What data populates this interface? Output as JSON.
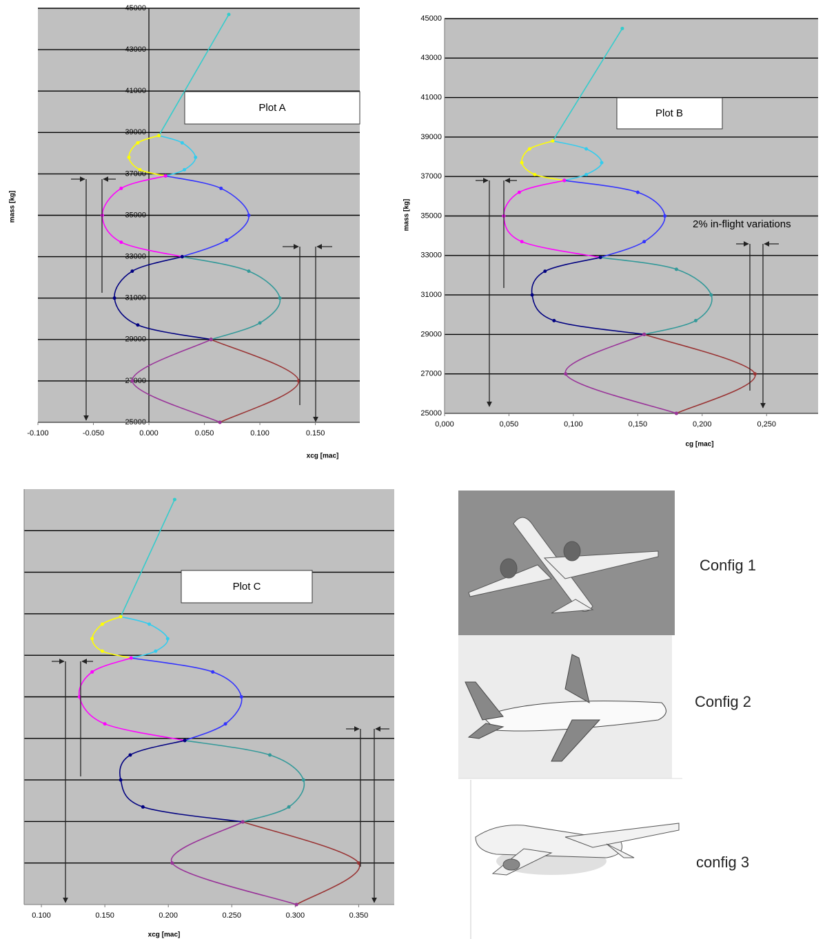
{
  "chart_data": [
    {
      "type": "line",
      "title": "Plot A",
      "x_label": "xcg [mac]",
      "y_label": "mass [kg]",
      "xlim": [
        -0.1,
        0.19
      ],
      "ylim": [
        25000,
        45000
      ],
      "xticks": [
        {
          "value": -0.1,
          "label": "-0.100"
        },
        {
          "value": -0.05,
          "label": "-0.050"
        },
        {
          "value": 0,
          "label": "0.000"
        },
        {
          "value": 0.05,
          "label": "0.050"
        },
        {
          "value": 0.1,
          "label": "0.100"
        },
        {
          "value": 0.15,
          "label": "0.150"
        }
      ],
      "yticks": [
        25000,
        27000,
        29000,
        31000,
        33000,
        35000,
        37000,
        39000,
        41000,
        43000,
        45000
      ],
      "grid": true,
      "zero_line": true,
      "show_ytick_labels": true,
      "series": [
        {
          "color": "#33cccc",
          "x": [
            0.009,
            0.072
          ],
          "y": [
            38850,
            44700
          ]
        },
        {
          "color": "#33ccee",
          "x": [
            0.009,
            0.03,
            0.042,
            0.032,
            0.015
          ],
          "y": [
            38850,
            38500,
            37800,
            37200,
            36900
          ]
        },
        {
          "color": "#ffff00",
          "x": [
            0.009,
            -0.01,
            -0.018,
            -0.008,
            0.015
          ],
          "y": [
            38850,
            38500,
            37800,
            37200,
            36900
          ]
        },
        {
          "color": "#3333ff",
          "x": [
            0.015,
            0.065,
            0.09,
            0.07,
            0.03
          ],
          "y": [
            36900,
            36300,
            35000,
            33800,
            33000
          ]
        },
        {
          "color": "#ff00ff",
          "x": [
            0.015,
            -0.025,
            -0.042,
            -0.025,
            0.03
          ],
          "y": [
            36900,
            36300,
            35000,
            33700,
            33000
          ]
        },
        {
          "color": "#339999",
          "x": [
            0.03,
            0.09,
            0.118,
            0.1,
            0.056
          ],
          "y": [
            33000,
            32300,
            31000,
            29800,
            29000
          ]
        },
        {
          "color": "#000080",
          "x": [
            0.03,
            -0.015,
            -0.031,
            -0.01,
            0.056
          ],
          "y": [
            33000,
            32300,
            31000,
            29700,
            29000
          ]
        },
        {
          "color": "#993333",
          "x": [
            0.056,
            0.135,
            0.064
          ],
          "y": [
            29000,
            27000,
            25000
          ]
        },
        {
          "color": "#993399",
          "x": [
            0.056,
            -0.015,
            0.064
          ],
          "y": [
            29000,
            27000,
            25000
          ]
        }
      ]
    },
    {
      "type": "line",
      "title": "Plot B",
      "x_label": "cg [mac]",
      "y_label": "mass [kg]",
      "annotation": "2% in-flight variations",
      "xlim": [
        0,
        0.29
      ],
      "ylim": [
        25000,
        45000
      ],
      "xticks": [
        {
          "value": 0,
          "label": "0,000"
        },
        {
          "value": 0.05,
          "label": "0,050"
        },
        {
          "value": 0.1,
          "label": "0,100"
        },
        {
          "value": 0.15,
          "label": "0,150"
        },
        {
          "value": 0.2,
          "label": "0,200"
        },
        {
          "value": 0.25,
          "label": "0,250"
        }
      ],
      "yticks": [
        25000,
        27000,
        29000,
        31000,
        33000,
        35000,
        37000,
        39000,
        41000,
        43000,
        45000
      ],
      "grid": true,
      "zero_line": false,
      "show_ytick_labels": true,
      "series": [
        {
          "color": "#33cccc",
          "x": [
            0.084,
            0.138
          ],
          "y": [
            38800,
            44500
          ]
        },
        {
          "color": "#33ccee",
          "x": [
            0.084,
            0.11,
            0.122,
            0.11,
            0.093
          ],
          "y": [
            38800,
            38400,
            37700,
            37100,
            36800
          ]
        },
        {
          "color": "#ffff00",
          "x": [
            0.084,
            0.066,
            0.06,
            0.07,
            0.093
          ],
          "y": [
            38800,
            38400,
            37700,
            37100,
            36800
          ]
        },
        {
          "color": "#3333ff",
          "x": [
            0.093,
            0.15,
            0.171,
            0.155,
            0.121
          ],
          "y": [
            36800,
            36200,
            35000,
            33700,
            32900
          ]
        },
        {
          "color": "#ff00ff",
          "x": [
            0.093,
            0.058,
            0.046,
            0.06,
            0.121
          ],
          "y": [
            36800,
            36200,
            35000,
            33700,
            32900
          ]
        },
        {
          "color": "#339999",
          "x": [
            0.121,
            0.18,
            0.207,
            0.195,
            0.155
          ],
          "y": [
            32900,
            32300,
            31000,
            29700,
            29000
          ]
        },
        {
          "color": "#000080",
          "x": [
            0.121,
            0.078,
            0.068,
            0.085,
            0.155
          ],
          "y": [
            32900,
            32200,
            31000,
            29700,
            29000
          ]
        },
        {
          "color": "#993333",
          "x": [
            0.155,
            0.241,
            0.18
          ],
          "y": [
            29000,
            27000,
            25000
          ]
        },
        {
          "color": "#993399",
          "x": [
            0.155,
            0.094,
            0.18
          ],
          "y": [
            29000,
            27000,
            25000
          ]
        }
      ]
    },
    {
      "type": "line",
      "title": "Plot C",
      "x_label": "xcg [mac]",
      "xlim": [
        0.0864,
        0.378
      ],
      "ylim": [
        25000,
        45000
      ],
      "xticks": [
        {
          "value": 0.1,
          "label": "0.100"
        },
        {
          "value": 0.15,
          "label": "0.150"
        },
        {
          "value": 0.2,
          "label": "0.200"
        },
        {
          "value": 0.25,
          "label": "0.250"
        },
        {
          "value": 0.3,
          "label": "0.300"
        },
        {
          "value": 0.35,
          "label": "0.350"
        }
      ],
      "yticks": [
        27000,
        29000,
        31000,
        33000,
        35000,
        37000,
        39000,
        41000,
        43000
      ],
      "grid": true,
      "zero_line": false,
      "show_ytick_labels": false,
      "series": [
        {
          "color": "#33cccc",
          "x": [
            0.1625,
            0.205
          ],
          "y": [
            38860,
            44500
          ]
        },
        {
          "color": "#33ccee",
          "x": [
            0.1625,
            0.185,
            0.1995,
            0.19,
            0.1707
          ],
          "y": [
            38860,
            38500,
            37800,
            37200,
            36870
          ]
        },
        {
          "color": "#ffff00",
          "x": [
            0.1625,
            0.148,
            0.14,
            0.148,
            0.1707
          ],
          "y": [
            38860,
            38500,
            37800,
            37200,
            36870
          ]
        },
        {
          "color": "#3333ff",
          "x": [
            0.1707,
            0.235,
            0.2576,
            0.245,
            0.213
          ],
          "y": [
            36870,
            36200,
            35000,
            33700,
            32900
          ]
        },
        {
          "color": "#ff00ff",
          "x": [
            0.1707,
            0.14,
            0.13,
            0.15,
            0.213
          ],
          "y": [
            36870,
            36200,
            35000,
            33700,
            32900
          ]
        },
        {
          "color": "#339999",
          "x": [
            0.213,
            0.28,
            0.3065,
            0.295,
            0.2587
          ],
          "y": [
            32900,
            32200,
            31000,
            29700,
            28980
          ]
        },
        {
          "color": "#000080",
          "x": [
            0.213,
            0.17,
            0.1625,
            0.18,
            0.2587
          ],
          "y": [
            32900,
            32200,
            31000,
            29700,
            28980
          ]
        },
        {
          "color": "#993333",
          "x": [
            0.2587,
            0.35,
            0.301
          ],
          "y": [
            28980,
            27000,
            25000
          ]
        },
        {
          "color": "#993399",
          "x": [
            0.2587,
            0.203,
            0.301
          ],
          "y": [
            28980,
            27000,
            25000
          ]
        }
      ]
    }
  ],
  "photos": {
    "labels": [
      "Config 1",
      "Config 2",
      "config 3"
    ]
  }
}
